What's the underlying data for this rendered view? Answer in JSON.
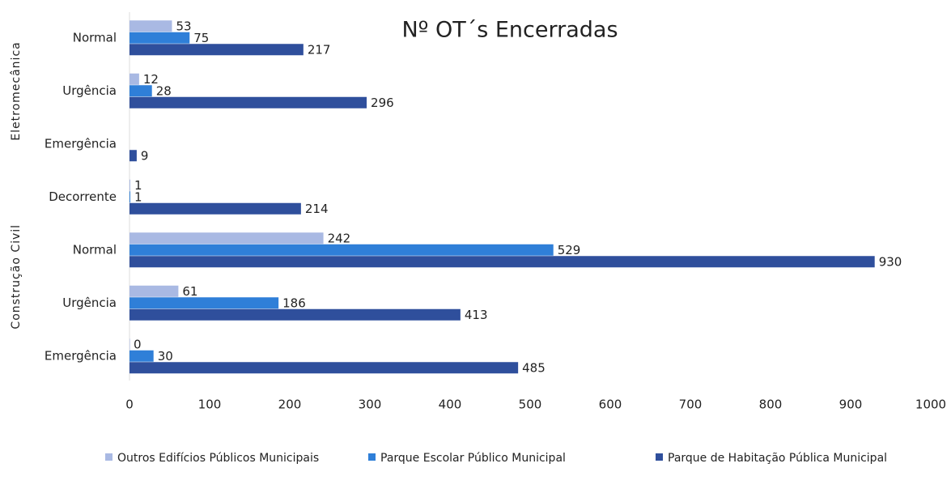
{
  "chart_data": {
    "type": "hbar",
    "title": "Nº OT´s Encerradas",
    "groups": [
      {
        "label": "Eletromecânica",
        "categories": [
          "Normal",
          "Urgência",
          "Emergência"
        ]
      },
      {
        "label": "Construção Civil",
        "categories": [
          "Decorrente",
          "Normal",
          "Urgência",
          "Emergência"
        ]
      }
    ],
    "series": [
      {
        "name": "Outros Edifícios Públicos Municipais",
        "color": "#a9b9e3",
        "values": [
          53,
          12,
          null,
          1,
          242,
          61,
          0
        ]
      },
      {
        "name": "Parque Escolar Público Municipal",
        "color": "#2f7fd8",
        "values": [
          75,
          28,
          null,
          1,
          529,
          186,
          30
        ]
      },
      {
        "name": "Parque de Habitação Pública Municipal",
        "color": "#2f4f9c",
        "values": [
          217,
          296,
          9,
          214,
          930,
          413,
          485
        ]
      }
    ],
    "xlim": [
      0,
      1000
    ],
    "xticks": [
      0,
      100,
      200,
      300,
      400,
      500,
      600,
      700,
      800,
      900,
      1000
    ],
    "grid": false,
    "legend": "bottom"
  }
}
